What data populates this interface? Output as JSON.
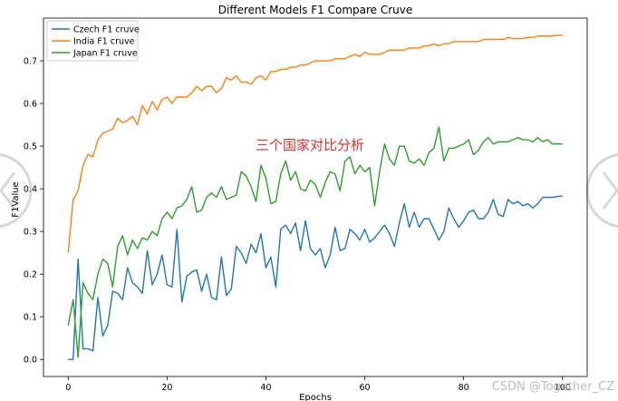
{
  "chart_data": {
    "type": "line",
    "title": "Different Models F1 Compare Cruve",
    "xlabel": "Epochs",
    "ylabel": "F1Value",
    "xlim": [
      -5,
      105
    ],
    "ylim": [
      -0.04,
      0.8
    ],
    "xticks": [
      "0",
      "20",
      "40",
      "60",
      "80",
      "100"
    ],
    "xtick_values": [
      0,
      20,
      40,
      60,
      80,
      100
    ],
    "yticks": [
      "0.0",
      "0.1",
      "0.2",
      "0.3",
      "0.4",
      "0.5",
      "0.6",
      "0.7"
    ],
    "ytick_values": [
      0.0,
      0.1,
      0.2,
      0.3,
      0.4,
      0.5,
      0.6,
      0.7
    ],
    "grid": false,
    "legend_position": "top-left",
    "annotation": "三个国家对比分析",
    "annotation_color": "#e0312f",
    "series": [
      {
        "name": "Czech F1 cruve",
        "color": "#1f77b4",
        "values": [
          0.0,
          0.0,
          0.235,
          0.025,
          0.025,
          0.02,
          0.145,
          0.055,
          0.08,
          0.16,
          0.155,
          0.14,
          0.215,
          0.18,
          0.17,
          0.155,
          0.255,
          0.175,
          0.2,
          0.245,
          0.175,
          0.17,
          0.305,
          0.135,
          0.195,
          0.205,
          0.21,
          0.16,
          0.2,
          0.145,
          0.14,
          0.24,
          0.15,
          0.165,
          0.265,
          0.25,
          0.225,
          0.27,
          0.25,
          0.295,
          0.215,
          0.24,
          0.17,
          0.305,
          0.315,
          0.295,
          0.32,
          0.255,
          0.325,
          0.26,
          0.245,
          0.26,
          0.215,
          0.245,
          0.31,
          0.255,
          0.26,
          0.305,
          0.295,
          0.28,
          0.305,
          0.275,
          0.285,
          0.3,
          0.315,
          0.295,
          0.265,
          0.32,
          0.365,
          0.31,
          0.345,
          0.31,
          0.33,
          0.33,
          0.305,
          0.28,
          0.3,
          0.355,
          0.33,
          0.31,
          0.325,
          0.345,
          0.35,
          0.33,
          0.33,
          0.345,
          0.375,
          0.34,
          0.335,
          0.375,
          0.365,
          0.37,
          0.36,
          0.365,
          0.355,
          0.365,
          0.38,
          0.38,
          0.38,
          0.382,
          0.383
        ]
      },
      {
        "name": "India F1 cruve",
        "color": "#ff7f0e",
        "values": [
          0.25,
          0.375,
          0.395,
          0.455,
          0.48,
          0.475,
          0.515,
          0.53,
          0.535,
          0.54,
          0.565,
          0.555,
          0.56,
          0.57,
          0.55,
          0.595,
          0.575,
          0.605,
          0.585,
          0.61,
          0.615,
          0.6,
          0.615,
          0.615,
          0.615,
          0.625,
          0.64,
          0.63,
          0.64,
          0.64,
          0.625,
          0.635,
          0.66,
          0.655,
          0.665,
          0.65,
          0.65,
          0.645,
          0.66,
          0.665,
          0.655,
          0.675,
          0.675,
          0.68,
          0.68,
          0.685,
          0.685,
          0.69,
          0.69,
          0.695,
          0.7,
          0.7,
          0.7,
          0.7,
          0.705,
          0.705,
          0.705,
          0.71,
          0.715,
          0.71,
          0.72,
          0.715,
          0.715,
          0.715,
          0.72,
          0.725,
          0.725,
          0.725,
          0.725,
          0.73,
          0.73,
          0.73,
          0.735,
          0.735,
          0.74,
          0.735,
          0.74,
          0.74,
          0.745,
          0.745,
          0.745,
          0.745,
          0.745,
          0.745,
          0.75,
          0.75,
          0.75,
          0.75,
          0.75,
          0.755,
          0.752,
          0.752,
          0.752,
          0.755,
          0.755,
          0.758,
          0.758,
          0.758,
          0.758,
          0.76,
          0.76
        ]
      },
      {
        "name": "Japan F1 cruve",
        "color": "#2ca02c",
        "values": [
          0.08,
          0.14,
          0.005,
          0.18,
          0.155,
          0.14,
          0.2,
          0.235,
          0.225,
          0.17,
          0.265,
          0.29,
          0.245,
          0.28,
          0.26,
          0.285,
          0.28,
          0.3,
          0.29,
          0.33,
          0.345,
          0.33,
          0.355,
          0.36,
          0.375,
          0.405,
          0.345,
          0.35,
          0.38,
          0.39,
          0.38,
          0.405,
          0.375,
          0.38,
          0.385,
          0.44,
          0.43,
          0.405,
          0.37,
          0.455,
          0.425,
          0.365,
          0.37,
          0.435,
          0.465,
          0.42,
          0.44,
          0.4,
          0.395,
          0.42,
          0.41,
          0.38,
          0.415,
          0.44,
          0.435,
          0.395,
          0.465,
          0.475,
          0.435,
          0.455,
          0.44,
          0.45,
          0.36,
          0.44,
          0.505,
          0.47,
          0.455,
          0.5,
          0.5,
          0.465,
          0.46,
          0.47,
          0.455,
          0.485,
          0.495,
          0.545,
          0.465,
          0.495,
          0.495,
          0.5,
          0.505,
          0.515,
          0.48,
          0.49,
          0.51,
          0.52,
          0.505,
          0.51,
          0.51,
          0.51,
          0.515,
          0.52,
          0.515,
          0.515,
          0.51,
          0.52,
          0.51,
          0.515,
          0.505,
          0.505,
          0.505
        ]
      }
    ]
  },
  "watermark": "CSDN @Together_CZ",
  "nav": {
    "prev_icon": "chevron-left-icon",
    "next_icon": "chevron-right-icon"
  }
}
